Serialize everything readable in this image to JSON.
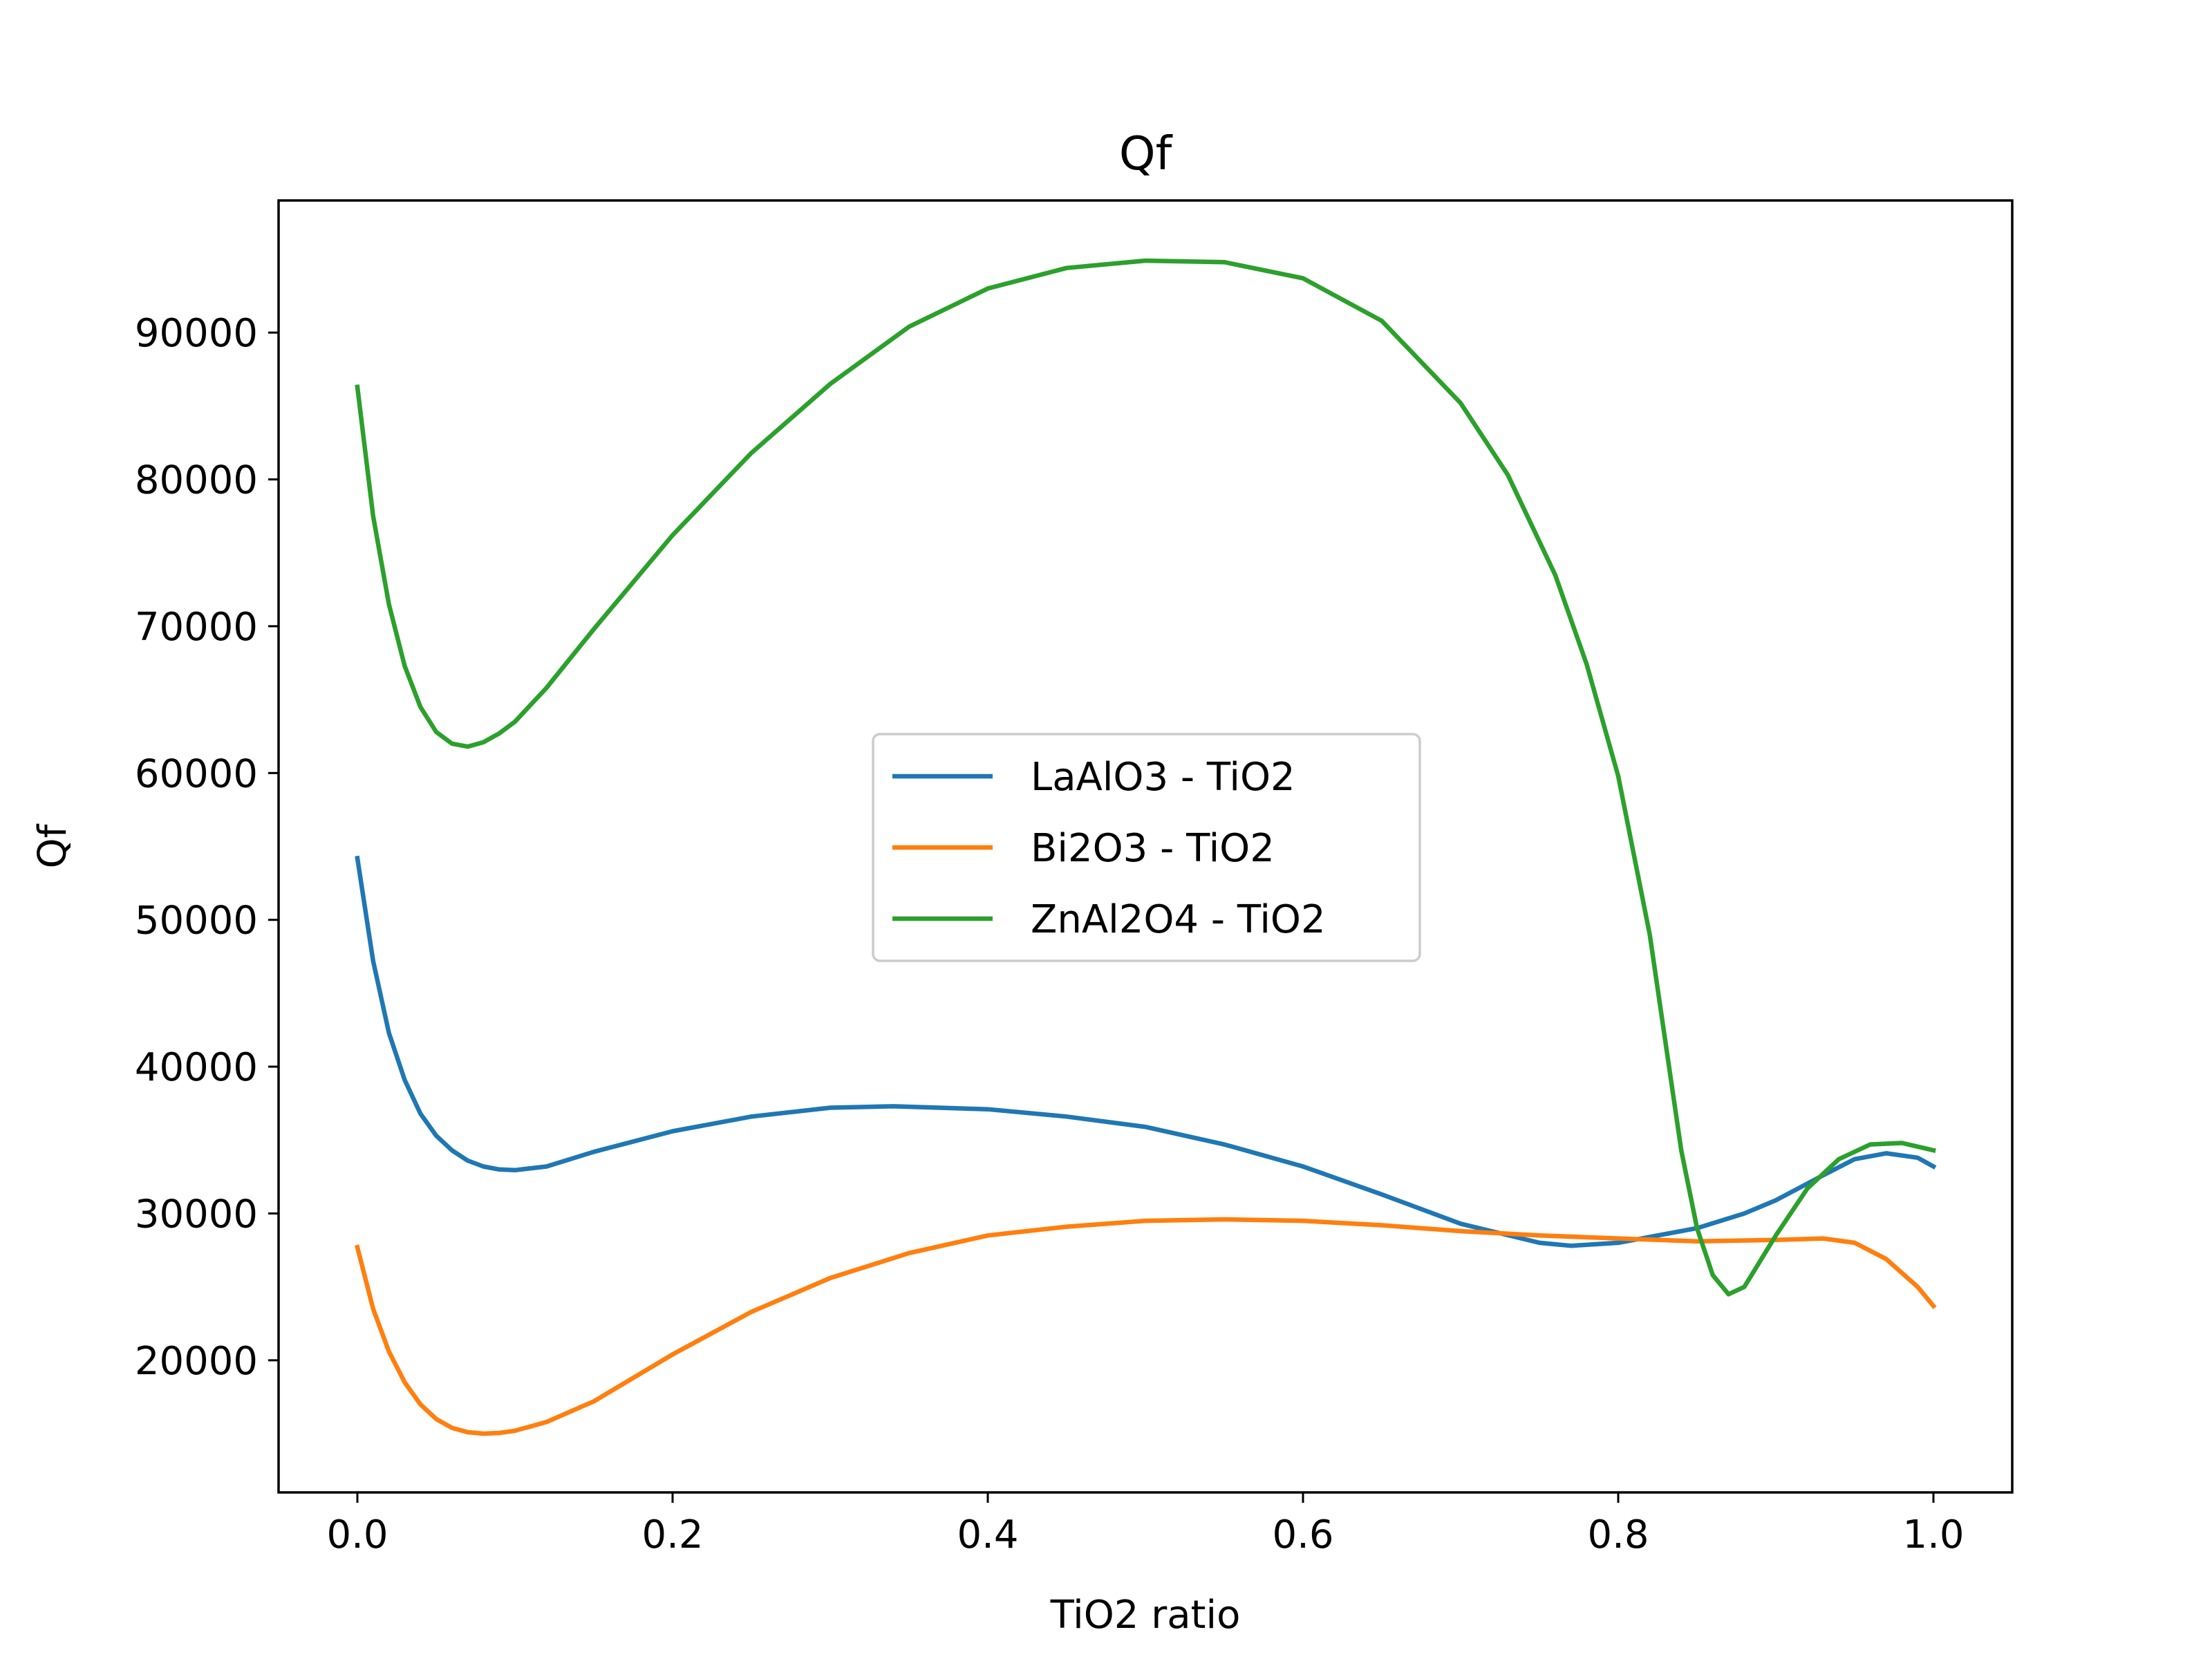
{
  "chart_data": {
    "type": "line",
    "title": "Qf",
    "xlabel": "TiO2 ratio",
    "ylabel": "Qf",
    "xlim": [
      -0.05,
      1.05
    ],
    "ylim": [
      11000,
      99000
    ],
    "xticks": [
      0.0,
      0.2,
      0.4,
      0.6,
      0.8,
      1.0
    ],
    "xtick_labels": [
      "0.0",
      "0.2",
      "0.4",
      "0.6",
      "0.8",
      "1.0"
    ],
    "yticks": [
      20000,
      30000,
      40000,
      50000,
      60000,
      70000,
      80000,
      90000
    ],
    "ytick_labels": [
      "20000",
      "30000",
      "40000",
      "50000",
      "60000",
      "70000",
      "80000",
      "90000"
    ],
    "grid": false,
    "legend_position": "center",
    "series": [
      {
        "name": "LaAlO3 - TiO2",
        "color": "#1f77b4",
        "x": [
          0.0,
          0.01,
          0.02,
          0.03,
          0.04,
          0.05,
          0.06,
          0.07,
          0.08,
          0.09,
          0.1,
          0.12,
          0.15,
          0.2,
          0.25,
          0.3,
          0.34,
          0.4,
          0.45,
          0.5,
          0.55,
          0.6,
          0.65,
          0.7,
          0.75,
          0.77,
          0.8,
          0.85,
          0.88,
          0.9,
          0.93,
          0.95,
          0.97,
          0.99,
          1.0
        ],
        "y": [
          54200,
          47200,
          42300,
          39100,
          36800,
          35300,
          34300,
          33600,
          33200,
          33000,
          32950,
          33200,
          34200,
          35600,
          36600,
          37200,
          37300,
          37100,
          36600,
          35900,
          34700,
          33200,
          31300,
          29300,
          28000,
          27800,
          28000,
          29000,
          30000,
          30900,
          32600,
          33700,
          34100,
          33800,
          33200
        ]
      },
      {
        "name": "Bi2O3 - TiO2",
        "color": "#ff7f0e",
        "x": [
          0.0,
          0.01,
          0.02,
          0.03,
          0.04,
          0.05,
          0.06,
          0.07,
          0.08,
          0.09,
          0.1,
          0.12,
          0.15,
          0.2,
          0.25,
          0.3,
          0.35,
          0.4,
          0.45,
          0.5,
          0.55,
          0.6,
          0.65,
          0.7,
          0.75,
          0.8,
          0.85,
          0.9,
          0.93,
          0.95,
          0.97,
          0.99,
          1.0
        ],
        "y": [
          27700,
          23500,
          20600,
          18500,
          17000,
          16000,
          15400,
          15100,
          15000,
          15050,
          15200,
          15800,
          17200,
          20400,
          23300,
          25600,
          27300,
          28500,
          29100,
          29500,
          29600,
          29500,
          29200,
          28800,
          28500,
          28300,
          28100,
          28200,
          28300,
          28000,
          26900,
          25000,
          23700
        ]
      },
      {
        "name": "ZnAl2O4 - TiO2",
        "color": "#2ca02c",
        "x": [
          0.0,
          0.01,
          0.02,
          0.03,
          0.04,
          0.05,
          0.06,
          0.07,
          0.08,
          0.09,
          0.1,
          0.12,
          0.15,
          0.2,
          0.25,
          0.3,
          0.35,
          0.4,
          0.45,
          0.5,
          0.55,
          0.6,
          0.65,
          0.7,
          0.73,
          0.76,
          0.78,
          0.8,
          0.82,
          0.84,
          0.85,
          0.86,
          0.87,
          0.88,
          0.9,
          0.92,
          0.94,
          0.96,
          0.98,
          1.0
        ],
        "y": [
          86300,
          77500,
          71500,
          67300,
          64500,
          62800,
          62000,
          61800,
          62100,
          62700,
          63500,
          65800,
          69800,
          76200,
          81800,
          86500,
          90400,
          93000,
          94400,
          94900,
          94800,
          93700,
          90800,
          85200,
          80300,
          73500,
          67400,
          59800,
          49000,
          34300,
          29000,
          25800,
          24500,
          25000,
          28500,
          31700,
          33700,
          34700,
          34800,
          34300
        ]
      }
    ]
  }
}
